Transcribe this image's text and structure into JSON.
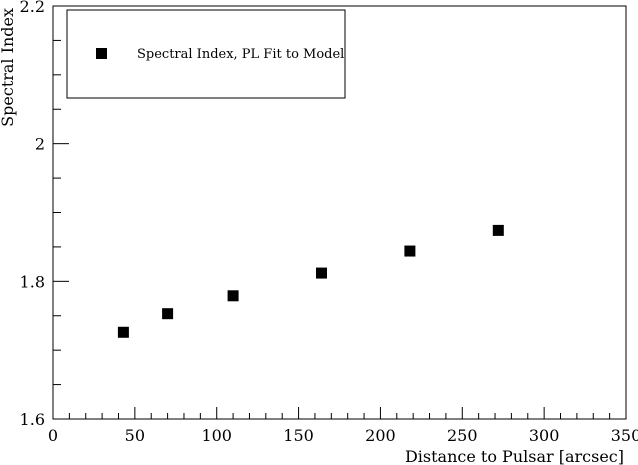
{
  "chart_data": {
    "type": "scatter",
    "title": "",
    "xlabel": "Distance to Pulsar [arcsec]",
    "ylabel": "Spectral Index",
    "xlim": [
      0,
      350
    ],
    "ylim": [
      1.6,
      2.2
    ],
    "x_ticks": [
      "0",
      "50",
      "100",
      "150",
      "200",
      "250",
      "300",
      "350"
    ],
    "y_ticks": [
      "1.6",
      "1.8",
      "2",
      "2.2"
    ],
    "grid": false,
    "legend_position": "top-left",
    "series": [
      {
        "name": "Spectral Index, PL Fit to Model",
        "marker": "square",
        "color": "#000000",
        "x": [
          43,
          70,
          110,
          164,
          218,
          272
        ],
        "y": [
          1.726,
          1.753,
          1.779,
          1.812,
          1.844,
          1.874
        ]
      }
    ]
  }
}
